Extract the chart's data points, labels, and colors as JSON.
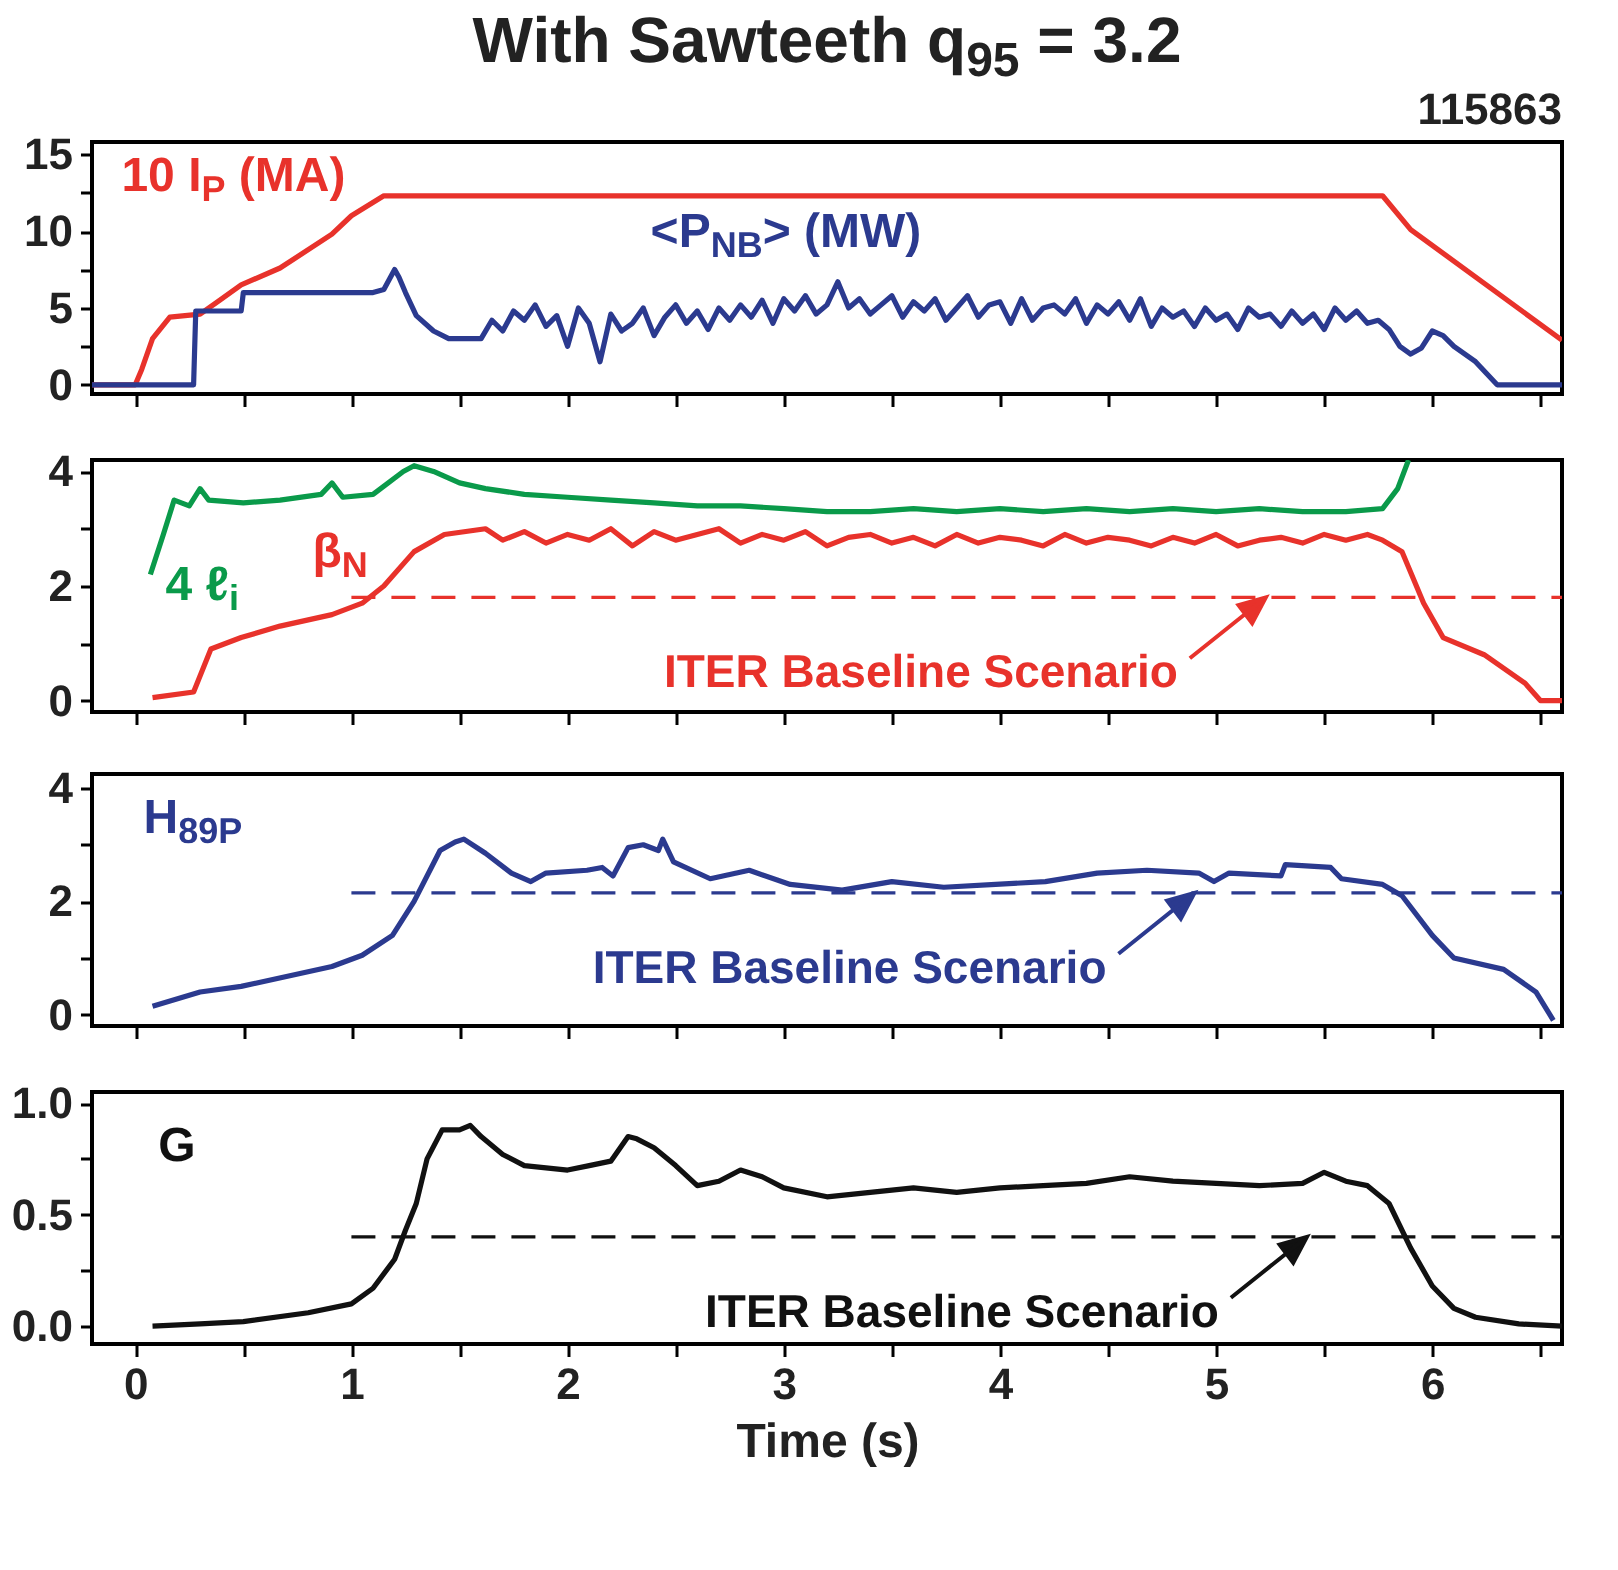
{
  "chart_data": [
    {
      "type": "line",
      "title": "With Sawteeth q$_{95}$ = 3.2",
      "annotations": [
        "115863"
      ],
      "tick_labels": "y",
      "xlim": [
        -0.2,
        6.6
      ],
      "xticks": [
        0,
        {
          "value": 0.5,
          "label": null
        },
        1,
        {
          "value": 1.5,
          "label": null
        },
        2,
        {
          "value": 2.5,
          "label": null
        },
        3,
        {
          "value": 3.5,
          "label": null
        },
        4,
        {
          "value": 4.5,
          "label": null
        },
        5,
        {
          "value": 5.5,
          "label": null
        },
        6,
        {
          "value": 6.5,
          "label": null
        }
      ],
      "ylim": [
        -0.6,
        15.8
      ],
      "yticks": [
        0,
        {
          "value": 2.5,
          "label": null
        },
        5,
        {
          "value": 7.5,
          "label": null
        },
        10,
        {
          "value": 12.5,
          "label": null
        },
        15
      ],
      "series": [
        {
          "name": "10 I$_{P}$ (MA)",
          "color": "#e8322b",
          "x": [
            -0.2,
            0.0,
            0.03,
            0.08,
            0.16,
            0.3,
            0.39,
            0.49,
            0.67,
            0.91,
            1.0,
            1.15,
            5.77,
            5.9,
            6.6
          ],
          "values": [
            0,
            0,
            1,
            3,
            4.4,
            4.6,
            5.5,
            6.5,
            7.6,
            9.8,
            11.0,
            12.3,
            12.3,
            10.1,
            2.9
          ]
        },
        {
          "name": "<P$_{NB}$> (MW)",
          "color": "#2b3a8f",
          "x": [
            -0.2,
            0.27,
            0.28,
            0.49,
            0.5,
            1.1,
            1.15,
            1.2,
            1.22,
            1.25,
            1.3,
            1.38,
            1.45,
            1.6,
            1.65,
            1.7,
            1.75,
            1.8,
            1.85,
            1.9,
            1.95,
            2,
            2.05,
            2.1,
            2.15,
            2.2,
            2.25,
            2.3,
            2.35,
            2.4,
            2.45,
            2.5,
            2.55,
            2.6,
            2.65,
            2.7,
            2.75,
            2.8,
            2.85,
            2.9,
            2.95,
            3,
            3.05,
            3.1,
            3.15,
            3.2,
            3.25,
            3.3,
            3.35,
            3.4,
            3.45,
            3.5,
            3.55,
            3.6,
            3.65,
            3.7,
            3.75,
            3.8,
            3.85,
            3.9,
            3.95,
            4,
            4.05,
            4.1,
            4.15,
            4.2,
            4.25,
            4.3,
            4.35,
            4.4,
            4.45,
            4.5,
            4.55,
            4.6,
            4.65,
            4.7,
            4.75,
            4.8,
            4.85,
            4.9,
            4.95,
            5,
            5.05,
            5.1,
            5.15,
            5.2,
            5.25,
            5.3,
            5.35,
            5.4,
            5.45,
            5.5,
            5.55,
            5.6,
            5.65,
            5.7,
            5.75,
            5.8,
            5.85,
            5.9,
            5.95,
            6.0,
            6.05,
            6.1,
            6.2,
            6.3,
            6.6
          ],
          "values": [
            0,
            0,
            4.8,
            4.8,
            6,
            6,
            6.2,
            7.5,
            7,
            6,
            4.5,
            3.5,
            3,
            3,
            4.2,
            3.5,
            4.8,
            4.2,
            5.2,
            3.8,
            4.5,
            2.5,
            5,
            4,
            1.5,
            4.6,
            3.5,
            4,
            5,
            3.2,
            4.4,
            5.2,
            4,
            4.8,
            3.6,
            5,
            4.2,
            5.2,
            4.4,
            5.5,
            4,
            5.6,
            4.8,
            5.8,
            4.6,
            5.2,
            6.7,
            5,
            5.6,
            4.6,
            5.2,
            5.8,
            4.4,
            5.4,
            4.8,
            5.6,
            4.2,
            5,
            5.8,
            4.4,
            5.2,
            5.4,
            4,
            5.6,
            4.2,
            5,
            5.2,
            4.6,
            5.6,
            4,
            5.2,
            4.6,
            5.4,
            4.2,
            5.6,
            3.8,
            5,
            4.4,
            4.8,
            3.8,
            5,
            4.2,
            4.6,
            3.6,
            5,
            4.4,
            4.6,
            3.8,
            4.8,
            4,
            4.6,
            3.6,
            5,
            4.2,
            4.8,
            4,
            4.2,
            3.6,
            2.5,
            2,
            2.4,
            3.5,
            3.2,
            2.5,
            1.5,
            0,
            0
          ]
        }
      ]
    },
    {
      "type": "line",
      "tick_labels": "y",
      "xlim": [
        -0.2,
        6.6
      ],
      "xticks": [
        0,
        {
          "value": 0.5,
          "label": null
        },
        1,
        {
          "value": 1.5,
          "label": null
        },
        2,
        {
          "value": 2.5,
          "label": null
        },
        3,
        {
          "value": 3.5,
          "label": null
        },
        4,
        {
          "value": 4.5,
          "label": null
        },
        5,
        {
          "value": 5.5,
          "label": null
        },
        6,
        {
          "value": 6.5,
          "label": null
        }
      ],
      "ylim": [
        -0.2,
        4.2
      ],
      "yticks": [
        0,
        {
          "value": 1,
          "label": null
        },
        2,
        {
          "value": 3,
          "label": null
        },
        4
      ],
      "annotations": [
        {
          "text": "ITER Baseline Scenario",
          "x": 5.23,
          "y": 1.8
        }
      ],
      "series": [
        {
          "name": "4 ℓ$_{i}$",
          "color": "#0a9a4a",
          "x": [
            0.07,
            0.13,
            0.18,
            0.25,
            0.3,
            0.34,
            0.5,
            0.67,
            0.86,
            0.91,
            0.96,
            1.1,
            1.24,
            1.29,
            1.38,
            1.5,
            1.62,
            1.8,
            2.0,
            2.2,
            2.4,
            2.6,
            2.8,
            3.0,
            3.2,
            3.4,
            3.6,
            3.8,
            4.0,
            4.2,
            4.4,
            4.6,
            4.8,
            5.0,
            5.2,
            5.4,
            5.6,
            5.77,
            5.84,
            5.89
          ],
          "values": [
            2.2,
            2.9,
            3.5,
            3.4,
            3.7,
            3.5,
            3.45,
            3.5,
            3.6,
            3.8,
            3.55,
            3.6,
            4.0,
            4.1,
            4.0,
            3.8,
            3.7,
            3.6,
            3.55,
            3.5,
            3.45,
            3.4,
            3.4,
            3.35,
            3.3,
            3.3,
            3.35,
            3.3,
            3.35,
            3.3,
            3.35,
            3.3,
            3.35,
            3.3,
            3.35,
            3.3,
            3.3,
            3.35,
            3.7,
            4.2
          ]
        },
        {
          "name": "β$_{N}$",
          "color": "#e8322b",
          "x": [
            0.08,
            0.27,
            0.35,
            0.49,
            0.67,
            0.91,
            1.05,
            1.15,
            1.29,
            1.43,
            1.62,
            1.7,
            1.8,
            1.9,
            2.0,
            2.1,
            2.2,
            2.3,
            2.4,
            2.5,
            2.6,
            2.7,
            2.8,
            2.9,
            3.0,
            3.1,
            3.2,
            3.3,
            3.4,
            3.5,
            3.6,
            3.7,
            3.8,
            3.9,
            4.0,
            4.1,
            4.2,
            4.3,
            4.4,
            4.5,
            4.6,
            4.7,
            4.8,
            4.9,
            5.0,
            5.1,
            5.2,
            5.3,
            5.4,
            5.5,
            5.6,
            5.7,
            5.77,
            5.86,
            5.96,
            6.05,
            6.24,
            6.43,
            6.5,
            6.6
          ],
          "values": [
            0.05,
            0.15,
            0.9,
            1.1,
            1.3,
            1.5,
            1.7,
            2.0,
            2.6,
            2.9,
            3.0,
            2.8,
            2.95,
            2.75,
            2.9,
            2.8,
            3.0,
            2.7,
            2.95,
            2.8,
            2.9,
            3.0,
            2.75,
            2.9,
            2.8,
            2.95,
            2.7,
            2.85,
            2.9,
            2.75,
            2.85,
            2.7,
            2.9,
            2.75,
            2.85,
            2.8,
            2.7,
            2.9,
            2.75,
            2.85,
            2.8,
            2.7,
            2.85,
            2.75,
            2.9,
            2.7,
            2.8,
            2.85,
            2.75,
            2.9,
            2.8,
            2.9,
            2.8,
            2.6,
            1.7,
            1.1,
            0.8,
            0.3,
            0,
            0
          ]
        },
        {
          "type": "line",
          "line_style": "dashed",
          "color": "#e8322b",
          "x": [
            1.0,
            6.6
          ],
          "values": [
            1.8,
            1.8
          ]
        }
      ]
    },
    {
      "type": "line",
      "tick_labels": "y",
      "xlim": [
        -0.2,
        6.6
      ],
      "xticks": [
        0,
        {
          "value": 0.5,
          "label": null
        },
        1,
        {
          "value": 1.5,
          "label": null
        },
        2,
        {
          "value": 2.5,
          "label": null
        },
        3,
        {
          "value": 3.5,
          "label": null
        },
        4,
        {
          "value": 4.5,
          "label": null
        },
        5,
        {
          "value": 5.5,
          "label": null
        },
        6,
        {
          "value": 6.5,
          "label": null
        }
      ],
      "ylim": [
        -0.2,
        4.25
      ],
      "yticks": [
        0,
        {
          "value": 1,
          "label": null
        },
        2,
        {
          "value": 3,
          "label": null
        },
        4
      ],
      "annotations": [
        {
          "text": "ITER Baseline Scenario",
          "x": 4.9,
          "y": 2.15
        }
      ],
      "series": [
        {
          "name": "H$_{89P}$",
          "color": "#2b3a8f",
          "x": [
            0.08,
            0.3,
            0.49,
            0.91,
            1.05,
            1.19,
            1.29,
            1.41,
            1.48,
            1.52,
            1.62,
            1.74,
            1.83,
            1.9,
            2.09,
            2.16,
            2.21,
            2.28,
            2.35,
            2.42,
            2.44,
            2.49,
            2.66,
            2.84,
            3.03,
            3.27,
            3.5,
            3.74,
            3.98,
            4.21,
            4.45,
            4.68,
            4.92,
            4.99,
            5.06,
            5.3,
            5.32,
            5.53,
            5.58,
            5.77,
            5.86,
            6.0,
            6.1,
            6.33,
            6.48,
            6.56
          ],
          "values": [
            0.15,
            0.4,
            0.5,
            0.85,
            1.05,
            1.4,
            2.0,
            2.9,
            3.05,
            3.1,
            2.85,
            2.5,
            2.35,
            2.5,
            2.55,
            2.6,
            2.45,
            2.95,
            3.0,
            2.9,
            3.1,
            2.7,
            2.4,
            2.55,
            2.3,
            2.2,
            2.35,
            2.25,
            2.3,
            2.35,
            2.5,
            2.55,
            2.5,
            2.35,
            2.5,
            2.45,
            2.65,
            2.6,
            2.4,
            2.3,
            2.1,
            1.4,
            1.0,
            0.8,
            0.4,
            -0.1
          ]
        },
        {
          "type": "line",
          "line_style": "dashed",
          "color": "#2b3a8f",
          "x": [
            1.0,
            6.6
          ],
          "values": [
            2.15,
            2.15
          ]
        }
      ]
    },
    {
      "type": "line",
      "xlabel": "Time (s)",
      "xlim": [
        -0.2,
        6.6
      ],
      "xticks": [
        0,
        {
          "value": 0.5,
          "label": null
        },
        1,
        {
          "value": 1.5,
          "label": null
        },
        2,
        {
          "value": 2.5,
          "label": null
        },
        3,
        {
          "value": 3.5,
          "label": null
        },
        4,
        {
          "value": 4.5,
          "label": null
        },
        5,
        {
          "value": 5.5,
          "label": null
        },
        6,
        {
          "value": 6.5,
          "label": null
        }
      ],
      "ylim": [
        -0.08,
        1.05
      ],
      "yticks": [
        {
          "value": 0,
          "label": "0.0"
        },
        {
          "value": 0.25,
          "label": null
        },
        {
          "value": 0.5,
          "label": "0.5"
        },
        {
          "value": 0.75,
          "label": null
        },
        {
          "value": 1,
          "label": "1.0"
        }
      ],
      "annotations": [
        {
          "text": "ITER Baseline Scenario",
          "x": 5.42,
          "y": 0.4
        }
      ],
      "series": [
        {
          "name": "G",
          "color": "#111111",
          "x": [
            0.08,
            0.3,
            0.5,
            0.8,
            1.0,
            1.1,
            1.2,
            1.25,
            1.3,
            1.35,
            1.42,
            1.5,
            1.55,
            1.6,
            1.7,
            1.8,
            2.0,
            2.1,
            2.2,
            2.28,
            2.32,
            2.4,
            2.5,
            2.6,
            2.7,
            2.8,
            2.9,
            3.0,
            3.2,
            3.4,
            3.6,
            3.8,
            4.0,
            4.2,
            4.4,
            4.6,
            4.8,
            5.0,
            5.2,
            5.4,
            5.5,
            5.6,
            5.7,
            5.8,
            5.9,
            6.0,
            6.1,
            6.2,
            6.4,
            6.6
          ],
          "values": [
            0,
            0.01,
            0.02,
            0.06,
            0.1,
            0.17,
            0.3,
            0.43,
            0.55,
            0.75,
            0.88,
            0.88,
            0.9,
            0.85,
            0.77,
            0.72,
            0.7,
            0.72,
            0.74,
            0.85,
            0.84,
            0.8,
            0.72,
            0.63,
            0.65,
            0.7,
            0.67,
            0.62,
            0.58,
            0.6,
            0.62,
            0.6,
            0.62,
            0.63,
            0.64,
            0.67,
            0.65,
            0.64,
            0.63,
            0.64,
            0.69,
            0.65,
            0.63,
            0.55,
            0.35,
            0.18,
            0.08,
            0.04,
            0.01,
            0
          ]
        },
        {
          "type": "line",
          "line_style": "dashed",
          "color": "#111111",
          "x": [
            1.0,
            6.6
          ],
          "values": [
            0.4,
            0.4
          ]
        }
      ]
    }
  ]
}
